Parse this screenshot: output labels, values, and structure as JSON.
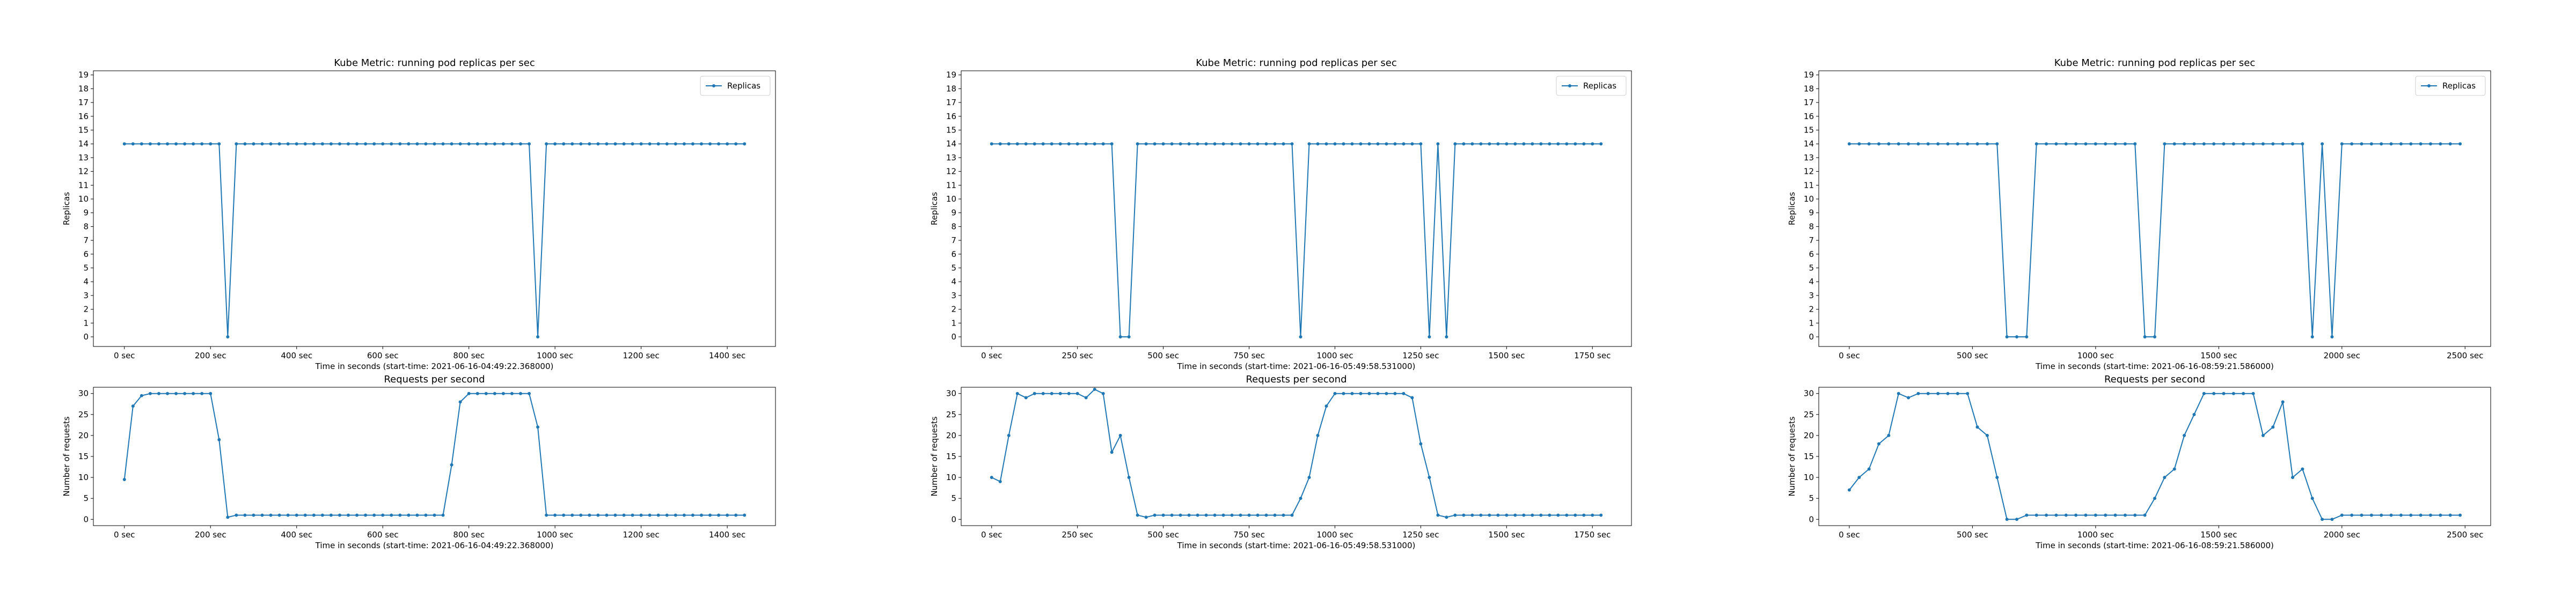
{
  "chart_data": [
    {
      "type": "line",
      "title": "Kube Metric: running pod replicas per sec",
      "xlabel": "Time in seconds (start-time: 2021-06-16-04:49:22.368000)",
      "ylabel": "Replicas",
      "legend": "upper right",
      "x": [
        0,
        20,
        40,
        60,
        80,
        100,
        120,
        140,
        160,
        180,
        200,
        220,
        240,
        260,
        280,
        300,
        320,
        340,
        360,
        380,
        400,
        420,
        440,
        460,
        480,
        500,
        520,
        540,
        560,
        580,
        600,
        620,
        640,
        660,
        680,
        700,
        720,
        740,
        760,
        780,
        800,
        820,
        840,
        860,
        880,
        900,
        920,
        940,
        960,
        980,
        1000,
        1020,
        1040,
        1060,
        1080,
        1100,
        1120,
        1140,
        1160,
        1180,
        1200,
        1220,
        1240,
        1260,
        1280,
        1300,
        1320,
        1340,
        1360,
        1380,
        1400,
        1420,
        1440
      ],
      "series": [
        {
          "name": "Replicas",
          "color": "#1f77b4",
          "values": [
            14,
            14,
            14,
            14,
            14,
            14,
            14,
            14,
            14,
            14,
            14,
            14,
            0,
            14,
            14,
            14,
            14,
            14,
            14,
            14,
            14,
            14,
            14,
            14,
            14,
            14,
            14,
            14,
            14,
            14,
            14,
            14,
            14,
            14,
            14,
            14,
            14,
            14,
            14,
            14,
            14,
            14,
            14,
            14,
            14,
            14,
            14,
            14,
            0,
            14,
            14,
            14,
            14,
            14,
            14,
            14,
            14,
            14,
            14,
            14,
            14,
            14,
            14,
            14,
            14,
            14,
            14,
            14,
            14,
            14,
            14,
            14,
            14
          ]
        }
      ],
      "xlim": [
        -72,
        1512
      ],
      "ylim": [
        -0.7,
        19.3
      ],
      "xticks": [
        {
          "value": 0,
          "label": "0 sec"
        },
        {
          "value": 200,
          "label": "200 sec"
        },
        {
          "value": 400,
          "label": "400 sec"
        },
        {
          "value": 600,
          "label": "600 sec"
        },
        {
          "value": 800,
          "label": "800 sec"
        },
        {
          "value": 1000,
          "label": "1000 sec"
        },
        {
          "value": 1200,
          "label": "1200 sec"
        },
        {
          "value": 1400,
          "label": "1400 sec"
        }
      ],
      "yticks": [
        0,
        1,
        2,
        3,
        4,
        5,
        6,
        7,
        8,
        9,
        10,
        11,
        12,
        13,
        14,
        15,
        16,
        17,
        18,
        19
      ]
    },
    {
      "type": "line",
      "title": "Requests per second",
      "xlabel": "Time in seconds (start-time: 2021-06-16-04:49:22.368000)",
      "ylabel": "Number of requests",
      "x": [
        0,
        20,
        40,
        60,
        80,
        100,
        120,
        140,
        160,
        180,
        200,
        220,
        240,
        260,
        280,
        300,
        320,
        340,
        360,
        380,
        400,
        420,
        440,
        460,
        480,
        500,
        520,
        540,
        560,
        580,
        600,
        620,
        640,
        660,
        680,
        700,
        720,
        740,
        760,
        780,
        800,
        820,
        840,
        860,
        880,
        900,
        920,
        940,
        960,
        980,
        1000,
        1020,
        1040,
        1060,
        1080,
        1100,
        1120,
        1140,
        1160,
        1180,
        1200,
        1220,
        1240,
        1260,
        1280,
        1300,
        1320,
        1340,
        1360,
        1380,
        1400,
        1420,
        1440
      ],
      "series": [
        {
          "color": "#1f77b4",
          "values": [
            9.5,
            27,
            29.5,
            30,
            30,
            30,
            30,
            30,
            30,
            30,
            30,
            19,
            0.5,
            1,
            1,
            1,
            1,
            1,
            1,
            1,
            1,
            1,
            1,
            1,
            1,
            1,
            1,
            1,
            1,
            1,
            1,
            1,
            1,
            1,
            1,
            1,
            1,
            1,
            13,
            28,
            30,
            30,
            30,
            30,
            30,
            30,
            30,
            30,
            22,
            1,
            1,
            1,
            1,
            1,
            1,
            1,
            1,
            1,
            1,
            1,
            1,
            1,
            1,
            1,
            1,
            1,
            1,
            1,
            1,
            1,
            1,
            1,
            1
          ]
        }
      ],
      "xlim": [
        -72,
        1512
      ],
      "ylim": [
        -1.5,
        31.5
      ],
      "xticks": [
        {
          "value": 0,
          "label": "0 sec"
        },
        {
          "value": 200,
          "label": "200 sec"
        },
        {
          "value": 400,
          "label": "400 sec"
        },
        {
          "value": 600,
          "label": "600 sec"
        },
        {
          "value": 800,
          "label": "800 sec"
        },
        {
          "value": 1000,
          "label": "1000 sec"
        },
        {
          "value": 1200,
          "label": "1200 sec"
        },
        {
          "value": 1400,
          "label": "1400 sec"
        }
      ],
      "yticks": [
        0,
        5,
        10,
        15,
        20,
        25,
        30
      ]
    },
    {
      "type": "line",
      "title": "Kube Metric: running pod replicas per sec",
      "xlabel": "Time in seconds (start-time: 2021-06-16-05:49:58.531000)",
      "ylabel": "Replicas",
      "legend": "upper right",
      "x": [
        0,
        25,
        50,
        75,
        100,
        125,
        150,
        175,
        200,
        225,
        250,
        275,
        300,
        325,
        350,
        375,
        400,
        425,
        450,
        475,
        500,
        525,
        550,
        575,
        600,
        625,
        650,
        675,
        700,
        725,
        750,
        775,
        800,
        825,
        850,
        875,
        900,
        925,
        950,
        975,
        1000,
        1025,
        1050,
        1075,
        1100,
        1125,
        1150,
        1175,
        1200,
        1225,
        1250,
        1275,
        1300,
        1325,
        1350,
        1375,
        1400,
        1425,
        1450,
        1475,
        1500,
        1525,
        1550,
        1575,
        1600,
        1625,
        1650,
        1675,
        1700,
        1725,
        1750,
        1775
      ],
      "series": [
        {
          "name": "Replicas",
          "color": "#1f77b4",
          "values": [
            14,
            14,
            14,
            14,
            14,
            14,
            14,
            14,
            14,
            14,
            14,
            14,
            14,
            14,
            14,
            0,
            0,
            14,
            14,
            14,
            14,
            14,
            14,
            14,
            14,
            14,
            14,
            14,
            14,
            14,
            14,
            14,
            14,
            14,
            14,
            14,
            0,
            14,
            14,
            14,
            14,
            14,
            14,
            14,
            14,
            14,
            14,
            14,
            14,
            14,
            14,
            0,
            14,
            0,
            14,
            14,
            14,
            14,
            14,
            14,
            14,
            14,
            14,
            14,
            14,
            14,
            14,
            14,
            14,
            14,
            14,
            14
          ]
        }
      ],
      "xlim": [
        -88.75,
        1863.75
      ],
      "ylim": [
        -0.7,
        19.3
      ],
      "xticks": [
        {
          "value": 0,
          "label": "0 sec"
        },
        {
          "value": 250,
          "label": "250 sec"
        },
        {
          "value": 500,
          "label": "500 sec"
        },
        {
          "value": 750,
          "label": "750 sec"
        },
        {
          "value": 1000,
          "label": "1000 sec"
        },
        {
          "value": 1250,
          "label": "1250 sec"
        },
        {
          "value": 1500,
          "label": "1500 sec"
        },
        {
          "value": 1750,
          "label": "1750 sec"
        }
      ],
      "yticks": [
        0,
        1,
        2,
        3,
        4,
        5,
        6,
        7,
        8,
        9,
        10,
        11,
        12,
        13,
        14,
        15,
        16,
        17,
        18,
        19
      ]
    },
    {
      "type": "line",
      "title": "Requests per second",
      "xlabel": "Time in seconds (start-time: 2021-06-16-05:49:58.531000)",
      "ylabel": "Number of requests",
      "x": [
        0,
        25,
        50,
        75,
        100,
        125,
        150,
        175,
        200,
        225,
        250,
        275,
        300,
        325,
        350,
        375,
        400,
        425,
        450,
        475,
        500,
        525,
        550,
        575,
        600,
        625,
        650,
        675,
        700,
        725,
        750,
        775,
        800,
        825,
        850,
        875,
        900,
        925,
        950,
        975,
        1000,
        1025,
        1050,
        1075,
        1100,
        1125,
        1150,
        1175,
        1200,
        1225,
        1250,
        1275,
        1300,
        1325,
        1350,
        1375,
        1400,
        1425,
        1450,
        1475,
        1500,
        1525,
        1550,
        1575,
        1600,
        1625,
        1650,
        1675,
        1700,
        1725,
        1750,
        1775
      ],
      "series": [
        {
          "color": "#1f77b4",
          "values": [
            10,
            9,
            20,
            30,
            29,
            30,
            30,
            30,
            30,
            30,
            30,
            29,
            31,
            30,
            16,
            20,
            10,
            1,
            0.5,
            1,
            1,
            1,
            1,
            1,
            1,
            1,
            1,
            1,
            1,
            1,
            1,
            1,
            1,
            1,
            1,
            1,
            5,
            10,
            20,
            27,
            30,
            30,
            30,
            30,
            30,
            30,
            30,
            30,
            30,
            29,
            18,
            10,
            1,
            0.5,
            1,
            1,
            1,
            1,
            1,
            1,
            1,
            1,
            1,
            1,
            1,
            1,
            1,
            1,
            1,
            1,
            1,
            1
          ]
        }
      ],
      "xlim": [
        -88.75,
        1863.75
      ],
      "ylim": [
        -1.5,
        31.5
      ],
      "xticks": [
        {
          "value": 0,
          "label": "0 sec"
        },
        {
          "value": 250,
          "label": "250 sec"
        },
        {
          "value": 500,
          "label": "500 sec"
        },
        {
          "value": 750,
          "label": "750 sec"
        },
        {
          "value": 1000,
          "label": "1000 sec"
        },
        {
          "value": 1250,
          "label": "1250 sec"
        },
        {
          "value": 1500,
          "label": "1500 sec"
        },
        {
          "value": 1750,
          "label": "1750 sec"
        }
      ],
      "yticks": [
        0,
        5,
        10,
        15,
        20,
        25,
        30
      ]
    },
    {
      "type": "line",
      "title": "Kube Metric: running pod replicas per sec",
      "xlabel": "Time in seconds (start-time: 2021-06-16-08:59:21.586000)",
      "ylabel": "Replicas",
      "legend": "upper right",
      "x": [
        0,
        40,
        80,
        120,
        160,
        200,
        240,
        280,
        320,
        360,
        400,
        440,
        480,
        520,
        560,
        600,
        640,
        680,
        720,
        760,
        800,
        840,
        880,
        920,
        960,
        1000,
        1040,
        1080,
        1120,
        1160,
        1200,
        1240,
        1280,
        1320,
        1360,
        1400,
        1440,
        1480,
        1520,
        1560,
        1600,
        1640,
        1680,
        1720,
        1760,
        1800,
        1840,
        1880,
        1920,
        1960,
        2000,
        2040,
        2080,
        2120,
        2160,
        2200,
        2240,
        2280,
        2320,
        2360,
        2400,
        2440,
        2480
      ],
      "series": [
        {
          "name": "Replicas",
          "color": "#1f77b4",
          "values": [
            14,
            14,
            14,
            14,
            14,
            14,
            14,
            14,
            14,
            14,
            14,
            14,
            14,
            14,
            14,
            14,
            0,
            0,
            0,
            14,
            14,
            14,
            14,
            14,
            14,
            14,
            14,
            14,
            14,
            14,
            0,
            0,
            14,
            14,
            14,
            14,
            14,
            14,
            14,
            14,
            14,
            14,
            14,
            14,
            14,
            14,
            14,
            0,
            14,
            0,
            14,
            14,
            14,
            14,
            14,
            14,
            14,
            14,
            14,
            14,
            14,
            14,
            14
          ]
        }
      ],
      "xlim": [
        -124,
        2604
      ],
      "ylim": [
        -0.7,
        19.3
      ],
      "xticks": [
        {
          "value": 0,
          "label": "0 sec"
        },
        {
          "value": 500,
          "label": "500 sec"
        },
        {
          "value": 1000,
          "label": "1000 sec"
        },
        {
          "value": 1500,
          "label": "1500 sec"
        },
        {
          "value": 2000,
          "label": "2000 sec"
        },
        {
          "value": 2500,
          "label": "2500 sec"
        }
      ],
      "yticks": [
        0,
        1,
        2,
        3,
        4,
        5,
        6,
        7,
        8,
        9,
        10,
        11,
        12,
        13,
        14,
        15,
        16,
        17,
        18,
        19
      ]
    },
    {
      "type": "line",
      "title": "Requests per second",
      "xlabel": "Time in seconds (start-time: 2021-06-16-08:59:21.586000)",
      "ylabel": "Number of requests",
      "x": [
        0,
        40,
        80,
        120,
        160,
        200,
        240,
        280,
        320,
        360,
        400,
        440,
        480,
        520,
        560,
        600,
        640,
        680,
        720,
        760,
        800,
        840,
        880,
        920,
        960,
        1000,
        1040,
        1080,
        1120,
        1160,
        1200,
        1240,
        1280,
        1320,
        1360,
        1400,
        1440,
        1480,
        1520,
        1560,
        1600,
        1640,
        1680,
        1720,
        1760,
        1800,
        1840,
        1880,
        1920,
        1960,
        2000,
        2040,
        2080,
        2120,
        2160,
        2200,
        2240,
        2280,
        2320,
        2360,
        2400,
        2440,
        2480
      ],
      "series": [
        {
          "color": "#1f77b4",
          "values": [
            7,
            10,
            12,
            18,
            20,
            30,
            29,
            30,
            30,
            30,
            30,
            30,
            30,
            22,
            20,
            10,
            0,
            0,
            1,
            1,
            1,
            1,
            1,
            1,
            1,
            1,
            1,
            1,
            1,
            1,
            1,
            5,
            10,
            12,
            20,
            25,
            30,
            30,
            30,
            30,
            30,
            30,
            20,
            22,
            28,
            10,
            12,
            5,
            0,
            0,
            1,
            1,
            1,
            1,
            1,
            1,
            1,
            1,
            1,
            1,
            1,
            1,
            1
          ]
        }
      ],
      "xlim": [
        -124,
        2604
      ],
      "ylim": [
        -1.5,
        31.5
      ],
      "xticks": [
        {
          "value": 0,
          "label": "0 sec"
        },
        {
          "value": 500,
          "label": "500 sec"
        },
        {
          "value": 1000,
          "label": "1000 sec"
        },
        {
          "value": 1500,
          "label": "1500 sec"
        },
        {
          "value": 2000,
          "label": "2000 sec"
        },
        {
          "value": 2500,
          "label": "2500 sec"
        }
      ],
      "yticks": [
        0,
        5,
        10,
        15,
        20,
        25,
        30
      ]
    }
  ]
}
